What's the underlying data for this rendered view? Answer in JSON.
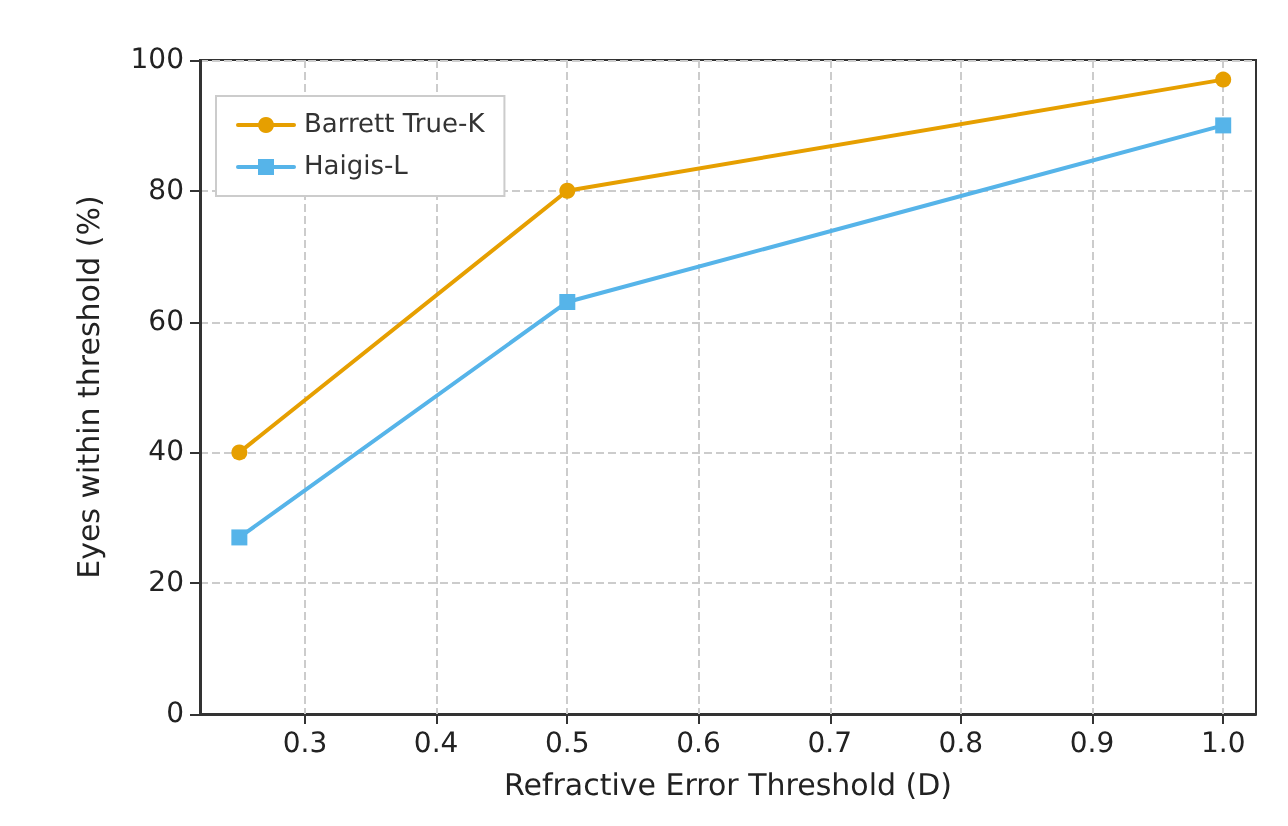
{
  "chart_data": {
    "type": "line",
    "xlabel": "Refractive Error Threshold (D)",
    "ylabel": "Eyes within threshold (%)",
    "x": [
      0.25,
      0.5,
      1.0
    ],
    "series": [
      {
        "name": "Barrett True-K",
        "color": "#e69f00",
        "values": [
          40,
          80,
          97
        ],
        "marker": "circle"
      },
      {
        "name": "Haigis-L",
        "color": "#56b4e9",
        "values": [
          27,
          63,
          90
        ],
        "marker": "square"
      }
    ],
    "xlim": [
      0.22,
      1.025
    ],
    "xticks": [
      0.3,
      0.4,
      0.5,
      0.6,
      0.7,
      0.8,
      0.9,
      {
        "value": 1,
        "label": "1.0"
      }
    ],
    "ylim": [
      0,
      100
    ],
    "yticks": [
      0,
      20,
      40,
      60,
      80,
      100
    ],
    "grid": true,
    "legend": "top left",
    "line_style": "solid"
  }
}
